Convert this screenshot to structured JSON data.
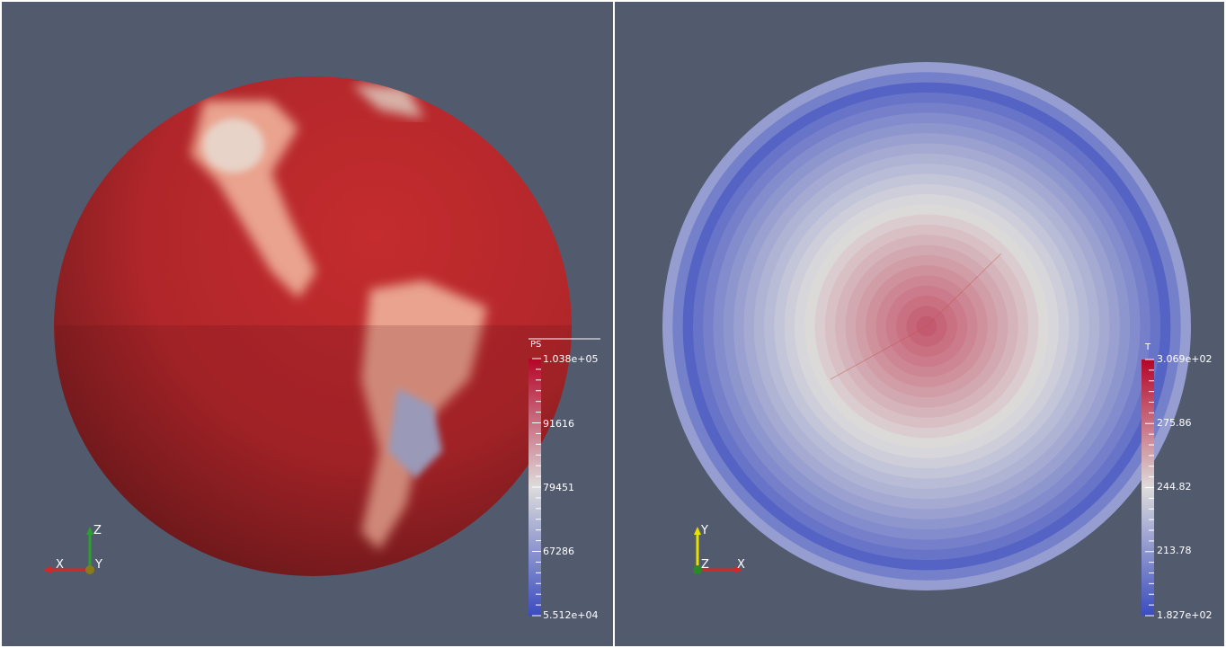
{
  "views": [
    {
      "id": "left",
      "colorbar": {
        "title": "PS",
        "max_label": "1.038e+05",
        "min_label": "5.512e+04",
        "mid_labels": [
          "91616",
          "79451",
          "67286"
        ]
      },
      "axes": {
        "horizontal": "X",
        "vertical": "Z",
        "depth": "Y"
      }
    },
    {
      "id": "right",
      "colorbar": {
        "title": "T",
        "max_label": "3.069e+02",
        "min_label": "1.827e+02",
        "mid_labels": [
          "275.86",
          "244.82",
          "213.78"
        ]
      },
      "axes": {
        "horizontal": "X",
        "vertical": "Y",
        "depth": "Z"
      }
    }
  ],
  "colors": {
    "background": "#525a6e",
    "colormap_high": "#b40426",
    "colormap_mid": "#dddcdc",
    "colormap_low": "#3b4cc0",
    "axis_x": "#d62728",
    "axis_y": "#e8e000",
    "axis_z": "#2ca02c"
  }
}
